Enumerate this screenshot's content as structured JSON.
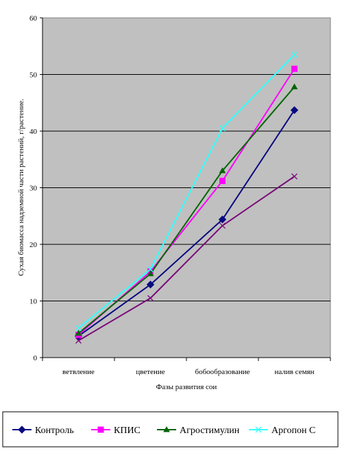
{
  "chart_data": {
    "type": "line",
    "categories": [
      "ветвление",
      "цветение",
      "бобообразование",
      "налив семян"
    ],
    "series": [
      {
        "name": "Контроль",
        "color": "#0a0a80",
        "marker": "diamond",
        "values": [
          3.8,
          12.9,
          24.4,
          43.7
        ]
      },
      {
        "name": "КПИС",
        "color": "#ff00ff",
        "marker": "square",
        "values": [
          4.0,
          15.2,
          31.2,
          51.0
        ]
      },
      {
        "name": "Агростимулин",
        "color": "#006400",
        "marker": "triangle",
        "values": [
          4.3,
          14.8,
          33.0,
          47.8
        ]
      },
      {
        "name": "Аргопон С",
        "color": "#33ffff",
        "marker": "x",
        "values": [
          5.2,
          15.6,
          40.5,
          53.5
        ]
      },
      {
        "name": "",
        "color": "#7a0a7a",
        "marker": "x",
        "values": [
          3.0,
          10.5,
          23.3,
          32.0
        ]
      }
    ],
    "xlabel": "Фазы развития сои",
    "ylabel": "Сухая биомасса надземной части растений, г/растение.",
    "ylim": [
      0,
      60
    ],
    "yticks": [
      "0",
      "10",
      "20",
      "30",
      "40",
      "50",
      "60"
    ],
    "grid": true,
    "plot_background": "#c0c0c0",
    "legend_position": "bottom"
  }
}
